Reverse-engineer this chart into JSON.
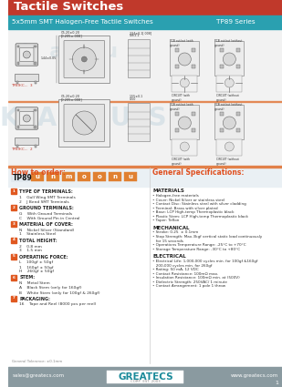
{
  "title": "Tactile Switches",
  "subtitle": "5x5mm SMT Halogen-Free Tactile Switches",
  "series": "TP89 Series",
  "header_bg": "#c0392b",
  "subheader_bg": "#2aa0b0",
  "footer_bg": "#8a9aa0",
  "footer_email": "sales@greatecs.com",
  "footer_web": "www.greatecs.com",
  "footer_page": "1",
  "how_to_order_title": "How to order:",
  "how_to_order_color": "#e05020",
  "tp89_label": "TP89",
  "general_specs_title": "General Specifications:",
  "order_boxes": [
    "u",
    "n",
    "m",
    "o",
    "o",
    "n",
    "u"
  ],
  "order_box_color": "#e08030",
  "left_section_items": [
    {
      "letter": "1",
      "color": "#e05820",
      "title": "TYPE OF TERMINALS:",
      "items": [
        "1    Gull Wing SMT Terminals",
        "2    J Bend SMT Terminals"
      ]
    },
    {
      "letter": "2",
      "color": "#e05820",
      "title": "GROUND TERMINALS:",
      "items": [
        "G    With Ground Terminals",
        "C    With Ground Pin in Central"
      ]
    },
    {
      "letter": "3",
      "color": "#e05820",
      "title": "MATERIAL OF COVER:",
      "items": [
        "N    Nickel Silver (Standard)",
        "1    Stainless Steel"
      ]
    },
    {
      "letter": "4",
      "color": "#e05820",
      "title": "TOTAL HEIGHT:",
      "items": [
        "2    0.8 mm",
        "3    1.5 mm"
      ]
    },
    {
      "letter": "5",
      "color": "#e05820",
      "title": "OPERATING FORCE:",
      "items": [
        "L    100gf ± 50gf",
        "1    160gf ± 50gf",
        "H    260gf ± 50gf"
      ]
    },
    {
      "letter": "6",
      "color": "#e05820",
      "title": "STEM:",
      "items": [
        "N    Metal Stem",
        "A    Black Stem (only for 160gf)",
        "B    White Stem (only for 100gf & 260gf)"
      ]
    },
    {
      "letter": "7",
      "color": "#e05820",
      "title": "PACKAGING:",
      "items": [
        "16    Tape and Reel (8000 pcs per reel)"
      ]
    }
  ],
  "materials_title": "MATERIALS",
  "materials_items": [
    "• Halogen-free materials",
    "• Cover: Nickel Silver or stainless steel",
    "• Contact Disc: Stainless steel with silver cladding",
    "• Terminal: Brass with silver plated",
    "• Base: LCP High-temp Thermoplastic black",
    "• Plastic Stem: LCP High-temp Thermoplastic black",
    "• Taper: Teflon"
  ],
  "mechanical_title": "MECHANICAL",
  "mechanical_items": [
    "• Stroke: 0.25  ± 0.1mm",
    "• Stop Strength: Max.3kgf vertical static load continuously",
    "   for 15 seconds",
    "• Operations Temperature Range: -25°C to +70°C",
    "• Storage Temperature Range: -30°C to +80°C"
  ],
  "electrical_title": "ELECTRICAL",
  "electrical_items": [
    "• Electrical Life: 1,000,000 cycles min. for 100gf &160gf",
    "   200,000 cycles min. for 260gf",
    "• Rating: 50 mA, 12 VDC",
    "• Contact Resistance: 100mΩ max.",
    "• Insulation Resistance: 100mΩ min. at (500V)",
    "• Dielectric Strength: 250VAC/ 1 minute",
    "• Contact Arrangement: 1 pole 1 throw"
  ],
  "tolerance_note": "General Tolerance: ±0.1mm",
  "watermark_text": "KAZUS",
  "bg_color": "#ffffff"
}
